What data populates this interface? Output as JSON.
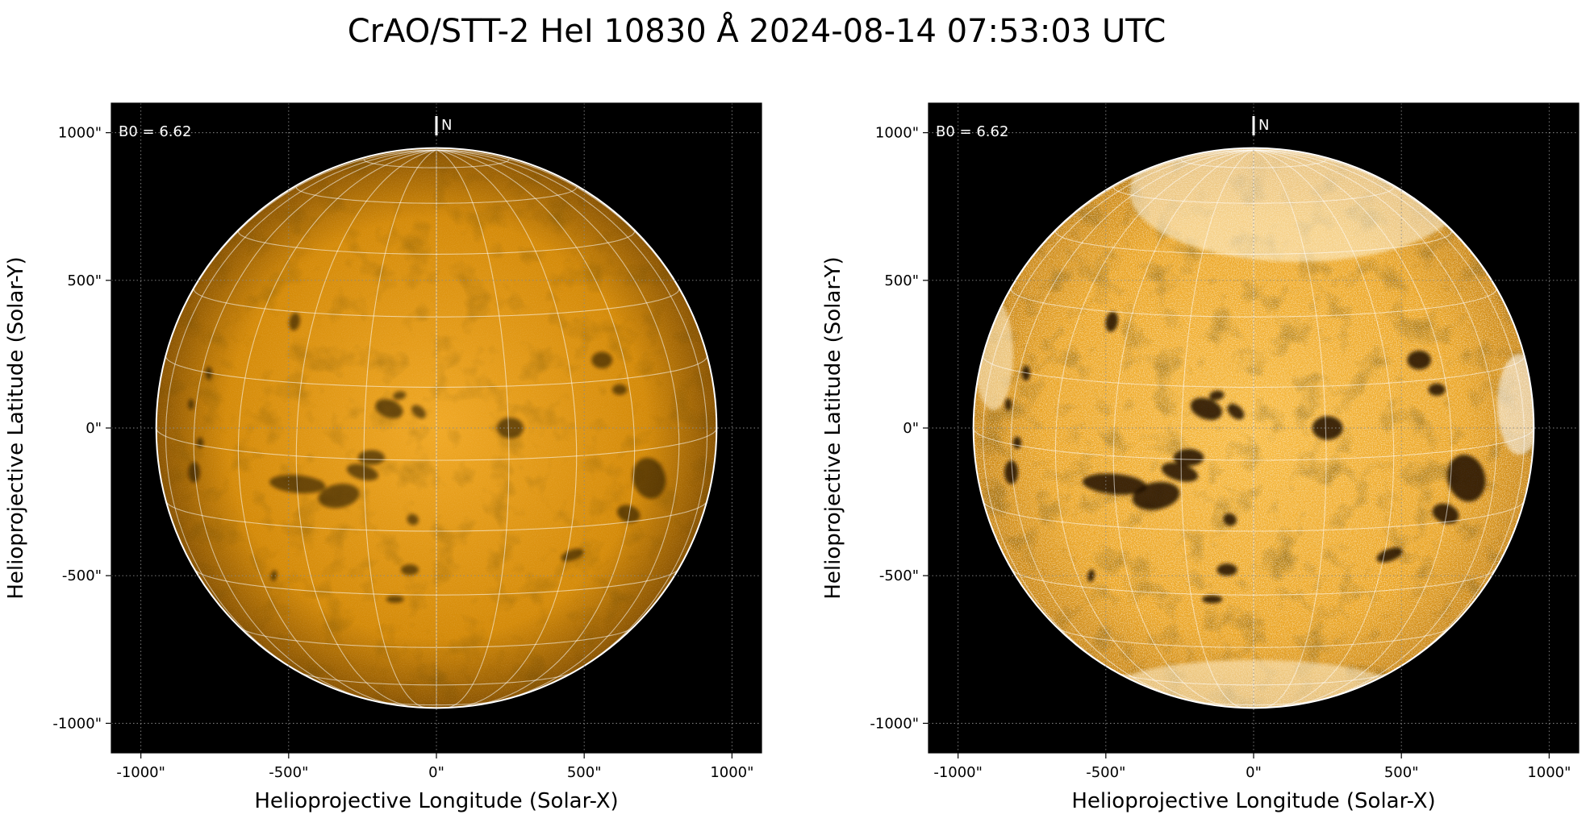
{
  "figure": {
    "title": "CrAO/STT-2 HeI 10830 Å 2024-08-14 07:53:03 UTC"
  },
  "colors": {
    "disk_base": "#d48a08",
    "disk_light": "#f0a824",
    "disk_edge": "#8a5402",
    "dark_feature": "#1e1002",
    "grid": "#ffffff",
    "background": "#000000"
  },
  "chart_data": [
    {
      "type": "heatmap",
      "panel": "left",
      "xlabel": "Helioprojective Longitude (Solar-X)",
      "ylabel": "Helioprojective Latitude (Solar-Y)",
      "xlim": [
        -1100,
        1100
      ],
      "ylim": [
        -1100,
        1100
      ],
      "x_ticks": [
        -1000,
        -500,
        0,
        500,
        1000
      ],
      "y_ticks": [
        -1000,
        -500,
        0,
        500,
        1000
      ],
      "x_tick_labels": [
        "-1000\"",
        "-500\"",
        "0\"",
        "500\"",
        "1000\""
      ],
      "y_tick_labels": [
        "-1000\"",
        "-500\"",
        "0\"",
        "500\"",
        "1000\""
      ],
      "annotation": "B0 = 6.62",
      "north_label": "N",
      "solar_radius": 948,
      "grid": true,
      "contrast": "normal"
    },
    {
      "type": "heatmap",
      "panel": "right",
      "xlabel": "Helioprojective Longitude (Solar-X)",
      "ylabel": "Helioprojective Latitude (Solar-Y)",
      "xlim": [
        -1100,
        1100
      ],
      "ylim": [
        -1100,
        1100
      ],
      "x_ticks": [
        -1000,
        -500,
        0,
        500,
        1000
      ],
      "y_ticks": [
        -1000,
        -500,
        0,
        500,
        1000
      ],
      "x_tick_labels": [
        "-1000\"",
        "-500\"",
        "0\"",
        "500\"",
        "1000\""
      ],
      "y_tick_labels": [
        "-1000\"",
        "-500\"",
        "0\"",
        "500\"",
        "1000\""
      ],
      "annotation": "B0 = 6.62",
      "north_label": "N",
      "solar_radius": 948,
      "grid": true,
      "contrast": "high"
    }
  ]
}
